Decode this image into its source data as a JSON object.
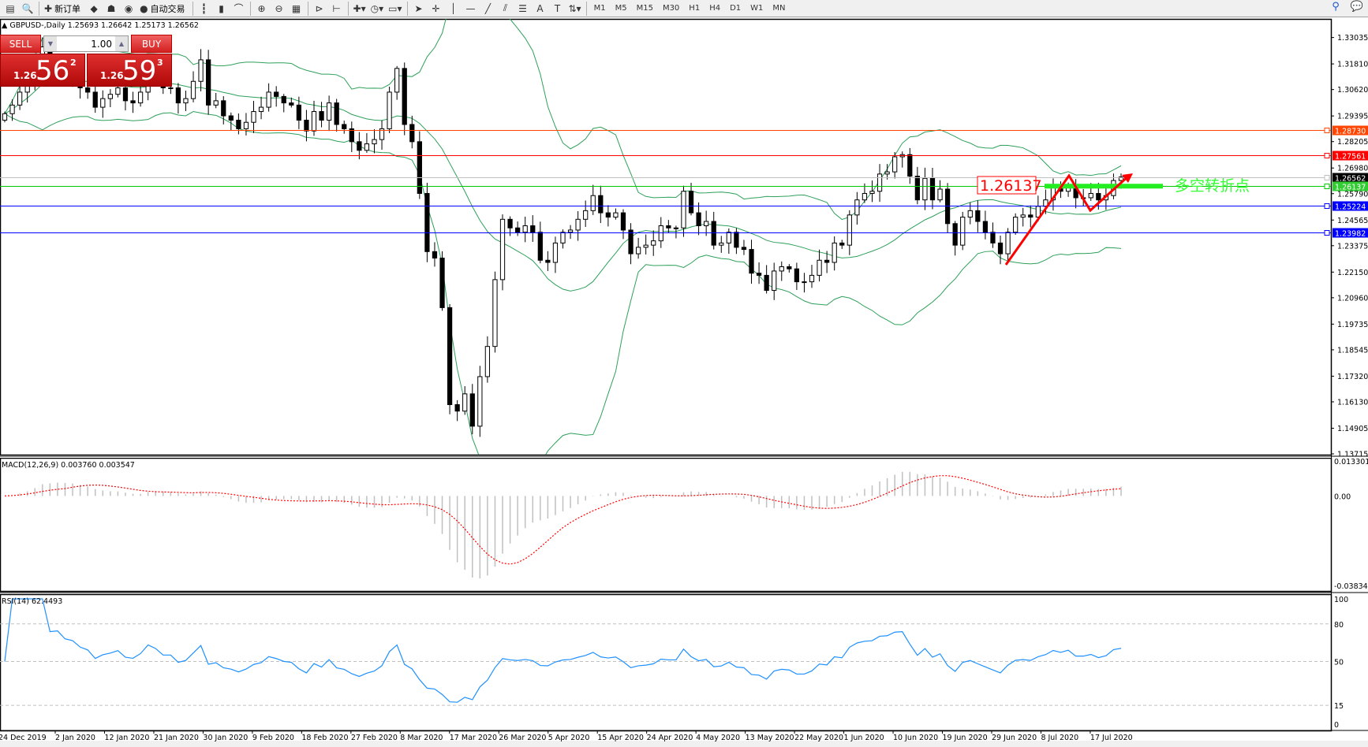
{
  "toolbar": {
    "items": [
      {
        "icon": "chart-icon",
        "glyph": "▤"
      },
      {
        "icon": "zoom-chart-icon",
        "glyph": "🔍"
      },
      {
        "icon": "new-order-icon",
        "glyph": "✚",
        "label": "新订单"
      },
      {
        "icon": "market-watch-icon",
        "glyph": "◆"
      },
      {
        "icon": "terminal-icon",
        "glyph": "☗"
      },
      {
        "icon": "signal-icon",
        "glyph": "◉"
      },
      {
        "icon": "auto-trading-icon",
        "glyph": "●",
        "label": "自动交易"
      },
      {
        "icon": "bar-chart-icon",
        "glyph": "┇"
      },
      {
        "icon": "candlestick-icon",
        "glyph": "▮"
      },
      {
        "icon": "line-chart-icon",
        "glyph": "⌒"
      },
      {
        "icon": "zoom-in-icon",
        "glyph": "⊕"
      },
      {
        "icon": "zoom-out-icon",
        "glyph": "⊖"
      },
      {
        "icon": "tile-windows-icon",
        "glyph": "▦"
      },
      {
        "icon": "auto-scroll-icon",
        "glyph": "⊳"
      },
      {
        "icon": "chart-shift-icon",
        "glyph": "⊢"
      },
      {
        "icon": "indicators-icon",
        "glyph": "✚▾"
      },
      {
        "icon": "periods-icon",
        "glyph": "◷▾"
      },
      {
        "icon": "templates-icon",
        "glyph": "▭▾"
      },
      {
        "icon": "cursor-icon",
        "glyph": "➤"
      },
      {
        "icon": "crosshair-icon",
        "glyph": "✛"
      },
      {
        "icon": "vertical-line-icon",
        "glyph": "│"
      },
      {
        "icon": "horizontal-line-icon",
        "glyph": "—"
      },
      {
        "icon": "trendline-icon",
        "glyph": "╱"
      },
      {
        "icon": "channel-icon",
        "glyph": "⫽"
      },
      {
        "icon": "fibonacci-icon",
        "glyph": "☰"
      },
      {
        "icon": "text-icon",
        "glyph": "A"
      },
      {
        "icon": "label-icon",
        "glyph": "T"
      },
      {
        "icon": "arrows-icon",
        "glyph": "⇅▾"
      }
    ],
    "timeframes": [
      "M1",
      "M5",
      "M15",
      "M30",
      "H1",
      "H4",
      "D1",
      "W1",
      "MN"
    ],
    "right_icons": [
      {
        "icon": "search-icon",
        "glyph": "⚲"
      },
      {
        "icon": "chat-icon",
        "glyph": "💬"
      }
    ]
  },
  "symbol_info": "GBPUSD-,Daily  1.25693 1.26642 1.25173 1.26562",
  "trade_panel": {
    "sell_label": "SELL",
    "buy_label": "BUY",
    "lot": "1.00",
    "sell": {
      "small": "1.26",
      "big": "56",
      "pip": "2"
    },
    "buy": {
      "small": "1.26",
      "big": "59",
      "pip": "3"
    }
  },
  "colors": {
    "bollinger": "#2ea05a",
    "bull": "#ffffff",
    "bear": "#000000",
    "macd_hist": "#c0c0c0",
    "macd_signal": "#ff0000",
    "rsi": "#1e90ff"
  },
  "chart_data": [
    {
      "type": "candlestick",
      "title": "GBPUSD-,Daily",
      "dates": [
        "24 Dec 2019",
        "2 Jan 2020",
        "12 Jan 2020",
        "21 Jan 2020",
        "30 Jan 2020",
        "9 Feb 2020",
        "18 Feb 2020",
        "27 Feb 2020",
        "8 Mar 2020",
        "17 Mar 2020",
        "26 Mar 2020",
        "5 Apr 2020",
        "15 Apr 2020",
        "24 Apr 2020",
        "4 May 2020",
        "13 May 2020",
        "22 May 2020",
        "1 Jun 2020",
        "10 Jun 2020",
        "19 Jun 2020",
        "29 Jun 2020",
        "8 Jul 2020",
        "17 Jul 2020"
      ],
      "closes": [
        1.295,
        1.299,
        1.305,
        1.31,
        1.318,
        1.326,
        1.315,
        1.316,
        1.312,
        1.311,
        1.307,
        1.305,
        1.298,
        1.302,
        1.304,
        1.307,
        1.301,
        1.3,
        1.305,
        1.316,
        1.313,
        1.307,
        1.307,
        1.3,
        1.302,
        1.31,
        1.32,
        1.299,
        1.301,
        1.294,
        1.292,
        1.288,
        1.291,
        1.296,
        1.298,
        1.305,
        1.303,
        1.3,
        1.299,
        1.292,
        1.287,
        1.296,
        1.292,
        1.3,
        1.29,
        1.288,
        1.282,
        1.278,
        1.281,
        1.283,
        1.288,
        1.305,
        1.316,
        1.29,
        1.282,
        1.258,
        1.231,
        1.228,
        1.205,
        1.16,
        1.157,
        1.165,
        1.15,
        1.173,
        1.187,
        1.218,
        1.246,
        1.242,
        1.24,
        1.243,
        1.24,
        1.227,
        1.226,
        1.235,
        1.24,
        1.241,
        1.246,
        1.25,
        1.257,
        1.249,
        1.247,
        1.249,
        1.241,
        1.23,
        1.233,
        1.234,
        1.236,
        1.243,
        1.242,
        1.242,
        1.259,
        1.249,
        1.243,
        1.245,
        1.234,
        1.235,
        1.24,
        1.233,
        1.232,
        1.221,
        1.22,
        1.213,
        1.222,
        1.224,
        1.223,
        1.217,
        1.217,
        1.22,
        1.227,
        1.226,
        1.235,
        1.234,
        1.248,
        1.255,
        1.258,
        1.259,
        1.267,
        1.268,
        1.275,
        1.276,
        1.266,
        1.255,
        1.265,
        1.255,
        1.26,
        1.244,
        1.234,
        1.247,
        1.25,
        1.245,
        1.24,
        1.235,
        1.23,
        1.24,
        1.247,
        1.248,
        1.247,
        1.252,
        1.255,
        1.261,
        1.259,
        1.262,
        1.256,
        1.256,
        1.258,
        1.255,
        1.257,
        1.264,
        1.26562
      ],
      "y_ticks": [
        "1.33035",
        "1.31810",
        "1.30620",
        "1.29395",
        "1.28205",
        "1.26980",
        "1.25790",
        "1.24565",
        "1.23375",
        "1.22150",
        "1.20960",
        "1.19735",
        "1.18545",
        "1.17320",
        "1.16130",
        "1.14905",
        "1.13715"
      ],
      "ylim": [
        1.13715,
        1.33035
      ],
      "indicators": [
        "Bollinger Bands(20)"
      ],
      "horizontal_lines": [
        {
          "price": "1.28730",
          "color": "#ff4500"
        },
        {
          "price": "1.27561",
          "color": "#ff0000"
        },
        {
          "price": "1.26562",
          "color": "#c0c0c0",
          "label_bg": "#000000"
        },
        {
          "price": "1.26137",
          "color": "#00c800",
          "label_bg": "#32cd32"
        },
        {
          "price": "1.25224",
          "color": "#0000ff"
        },
        {
          "price": "1.23982",
          "color": "#0000ff"
        }
      ],
      "annotations": {
        "price_label": "1.26137",
        "text": "多空转折点",
        "text_color": "#33ff33",
        "arrow_color": "#ff0000"
      }
    },
    {
      "type": "bar",
      "title": "MACD(12,26,9) 0.003760 0.003547",
      "y_ticks": [
        "0.013301",
        "0.00",
        "-0.038343"
      ],
      "ylim": [
        -0.038343,
        0.013301
      ]
    },
    {
      "type": "line",
      "title": "RSI(14) 62.4493",
      "y_ticks": [
        "100",
        "80",
        "50",
        "15",
        "0"
      ],
      "levels": [
        80,
        50,
        15
      ],
      "ylim": [
        0,
        100
      ]
    }
  ]
}
